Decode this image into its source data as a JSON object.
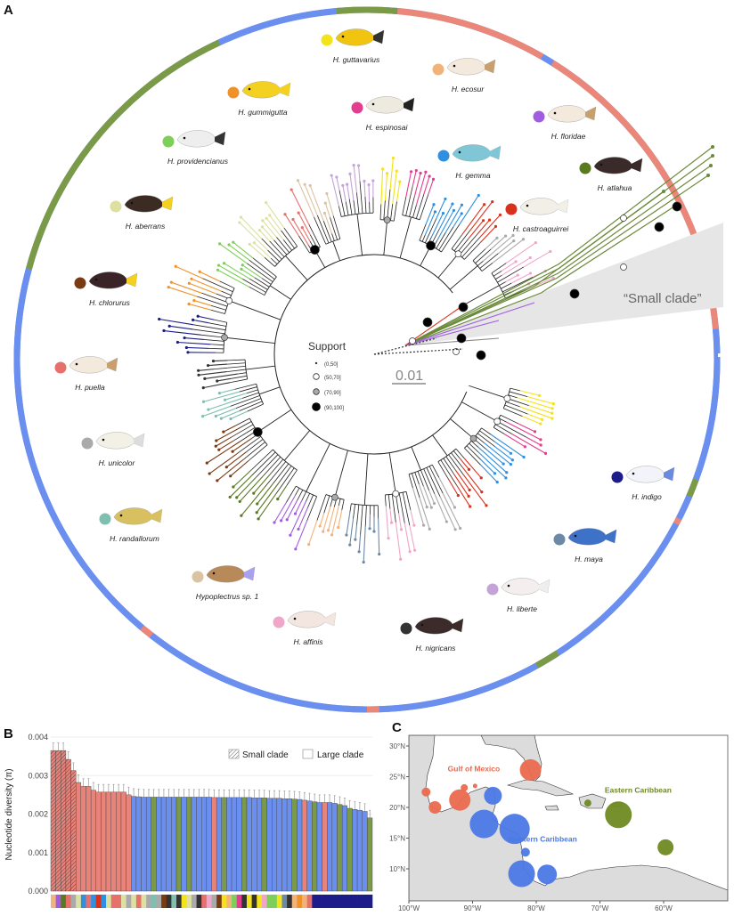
{
  "panel_labels": {
    "a": "A",
    "b": "B",
    "c": "C"
  },
  "tree": {
    "support_title": "Support",
    "support_bins": [
      "(0,50]",
      "(50,70]",
      "(70,90]",
      "(90,100]"
    ],
    "scale_label": "0.01",
    "small_clade_label": "“Small clade”",
    "ring_colors": {
      "gulf": "#ea8778",
      "western": "#6b8fef",
      "eastern": "#7b9a48"
    }
  },
  "species": [
    {
      "name": "H. guttavarius",
      "color": "#f4e21a"
    },
    {
      "name": "H. ecosur",
      "color": "#f2b37a"
    },
    {
      "name": "H. gummigutta",
      "color": "#f0922a"
    },
    {
      "name": "H. espinosai",
      "color": "#e23d8e"
    },
    {
      "name": "H. floridae",
      "color": "#a05de0"
    },
    {
      "name": "H. providencianus",
      "color": "#7ecf5a"
    },
    {
      "name": "H. gemma",
      "color": "#2f8fe0"
    },
    {
      "name": "H. atlahua",
      "color": "#5a7a22"
    },
    {
      "name": "H. aberrans",
      "color": "#dde0a0"
    },
    {
      "name": "H. castroaguirrei",
      "color": "#d8321c"
    },
    {
      "name": "H. chlorurus",
      "color": "#7a3a12"
    },
    {
      "name": "H. puella",
      "color": "#e6706a"
    },
    {
      "name": "H. unicolor",
      "color": "#aaaaaa"
    },
    {
      "name": "H. randallorum",
      "color": "#7fbfb0"
    },
    {
      "name": "Hypoplectrus sp. 1",
      "color": "#d9c3a3"
    },
    {
      "name": "H. affinis",
      "color": "#f0a6c8"
    },
    {
      "name": "H. nigricans",
      "color": "#333333"
    },
    {
      "name": "H. liberte",
      "color": "#c4a4d8"
    },
    {
      "name": "H. maya",
      "color": "#6c8aa8"
    },
    {
      "name": "H. indigo",
      "color": "#1c1c8a"
    }
  ],
  "chart_data": {
    "type": "bar",
    "ylabel": "Nucleotide diversity (π)",
    "ylim": [
      0,
      0.004
    ],
    "yticks": [
      "0.000",
      "0.001",
      "0.002",
      "0.003",
      "0.004"
    ],
    "legend": {
      "hatched": "Small clade",
      "plain": "Large clade",
      "placement": "top-right"
    },
    "values": [
      0.00365,
      0.00365,
      0.00365,
      0.00342,
      0.00313,
      0.00282,
      0.00272,
      0.00272,
      0.00262,
      0.00257,
      0.00257,
      0.00257,
      0.00257,
      0.00257,
      0.00257,
      0.0025,
      0.00246,
      0.00245,
      0.00244,
      0.00244,
      0.00244,
      0.00244,
      0.00244,
      0.00244,
      0.00244,
      0.00244,
      0.00244,
      0.00244,
      0.00244,
      0.00244,
      0.00244,
      0.00244,
      0.00243,
      0.00243,
      0.00243,
      0.00243,
      0.00243,
      0.00243,
      0.00243,
      0.00243,
      0.00242,
      0.00242,
      0.00242,
      0.00241,
      0.00241,
      0.00241,
      0.0024,
      0.0024,
      0.00239,
      0.00238,
      0.00236,
      0.00234,
      0.00232,
      0.0023,
      0.0023,
      0.0023,
      0.00228,
      0.00225,
      0.00222,
      0.00215,
      0.00212,
      0.0021,
      0.00207,
      0.0019
    ],
    "errors": 0.0002,
    "small_clade_count": 5,
    "region": [
      "G",
      "G",
      "G",
      "G",
      "G",
      "G",
      "G",
      "G",
      "G",
      "G",
      "G",
      "G",
      "G",
      "G",
      "G",
      "G",
      "W",
      "W",
      "W",
      "W",
      "E",
      "W",
      "W",
      "W",
      "W",
      "E",
      "W",
      "E",
      "W",
      "W",
      "W",
      "W",
      "G",
      "W",
      "E",
      "W",
      "W",
      "W",
      "E",
      "W",
      "W",
      "W",
      "E",
      "W",
      "W",
      "W",
      "W",
      "W",
      "E",
      "W",
      "G",
      "W",
      "E",
      "W",
      "G",
      "W",
      "W",
      "E",
      "W",
      "E",
      "W",
      "W",
      "W",
      "E"
    ],
    "species_strip": [
      "#f2b37a",
      "#a05de0",
      "#5a7a22",
      "#e6706a",
      "#aaaaaa",
      "#dde0a0",
      "#2f8fe0",
      "#e6706a",
      "#2f8fe0",
      "#d8321c",
      "#2f8fe0",
      "#dde0a0",
      "#e6706a",
      "#e6706a",
      "#dde0a0",
      "#aaaaaa",
      "#dde0a0",
      "#e6706a",
      "#dde0a0",
      "#aaaaaa",
      "#7fbfb0",
      "#aaaaaa",
      "#7a3a12",
      "#333333",
      "#7fbfb0",
      "#333333",
      "#f4e21a",
      "#dde0a0",
      "#aaaaaa",
      "#333333",
      "#e6706a",
      "#f0a6c8",
      "#aaaaaa",
      "#7a3a12",
      "#f4e21a",
      "#f2b37a",
      "#7ecf5a",
      "#e23d8e",
      "#333333",
      "#f4e21a",
      "#333333",
      "#f4e21a",
      "#f0a6c8",
      "#7ecf5a",
      "#7ecf5a",
      "#f4e21a",
      "#6c8aa8",
      "#333333",
      "#f2b37a",
      "#f0922a",
      "#f2b37a",
      "#e6706a",
      "#1c1c8a",
      "#1c1c8a",
      "#1c1c8a",
      "#1c1c8a",
      "#1c1c8a",
      "#1c1c8a",
      "#1c1c8a",
      "#1c1c8a",
      "#1c1c8a",
      "#1c1c8a",
      "#1c1c8a",
      "#1c1c8a"
    ]
  },
  "map": {
    "lon_ticks": [
      "100°W",
      "90°W",
      "80°W",
      "70°W",
      "60°W"
    ],
    "lat_ticks": [
      "10°N",
      "15°N",
      "20°N",
      "25°N",
      "30°N"
    ],
    "regions": [
      {
        "label": "Gulf of Mexico",
        "color": "#ea6a4e",
        "lon": -89.8,
        "lat": 25.9
      },
      {
        "label": "Western Caribbean",
        "color": "#4a78e6",
        "lon": -79,
        "lat": 14.4
      },
      {
        "label": "Eastern Caribbean",
        "color": "#6e8a22",
        "lon": -64,
        "lat": 22.4
      }
    ],
    "sites": [
      {
        "region": 0,
        "lon": -97.3,
        "lat": 22.5,
        "size": 5
      },
      {
        "region": 0,
        "lon": -95.9,
        "lat": 20.0,
        "size": 7
      },
      {
        "region": 0,
        "lon": -92.0,
        "lat": 21.2,
        "size": 12
      },
      {
        "region": 0,
        "lon": -91.3,
        "lat": 23.2,
        "size": 4
      },
      {
        "region": 0,
        "lon": -89.6,
        "lat": 23.5,
        "size": 2.5
      },
      {
        "region": 0,
        "lon": -80.9,
        "lat": 26.1,
        "size": 12
      },
      {
        "region": 1,
        "lon": -86.8,
        "lat": 21.9,
        "size": 10
      },
      {
        "region": 1,
        "lon": -88.2,
        "lat": 17.3,
        "size": 16
      },
      {
        "region": 1,
        "lon": -83.4,
        "lat": 16.5,
        "size": 17
      },
      {
        "region": 1,
        "lon": -81.7,
        "lat": 12.7,
        "size": 5
      },
      {
        "region": 1,
        "lon": -82.3,
        "lat": 9.2,
        "size": 15
      },
      {
        "region": 1,
        "lon": -78.3,
        "lat": 9.1,
        "size": 11
      },
      {
        "region": 2,
        "lon": -71.9,
        "lat": 20.7,
        "size": 4
      },
      {
        "region": 2,
        "lon": -67.1,
        "lat": 18.8,
        "size": 15
      },
      {
        "region": 2,
        "lon": -59.7,
        "lat": 13.5,
        "size": 9
      }
    ]
  }
}
